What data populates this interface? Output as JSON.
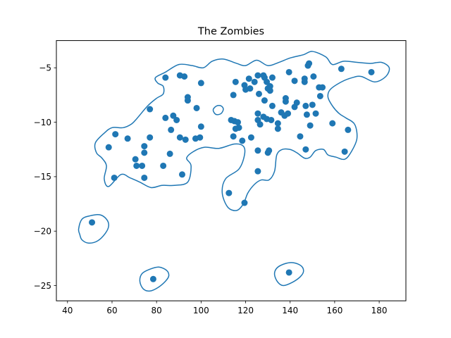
{
  "chart_data": {
    "type": "scatter",
    "title": "The Zombies",
    "xlabel": "",
    "ylabel": "",
    "xlim": [
      35,
      192
    ],
    "ylim": [
      -26.4,
      -2.5
    ],
    "xticks": [
      40,
      60,
      80,
      100,
      120,
      140,
      160,
      180
    ],
    "yticks": [
      -5,
      -10,
      -15,
      -20,
      -25
    ],
    "grid": false,
    "point_color": "#1f77b4",
    "contour_color": "#1f77b4",
    "series": [
      {
        "points": [
          [
            51,
            -19.2
          ],
          [
            78.5,
            -24.4
          ],
          [
            139.5,
            -23.8
          ],
          [
            112.5,
            -16.5
          ],
          [
            119.5,
            -17.4
          ],
          [
            61,
            -15.1
          ],
          [
            74.5,
            -15.1
          ],
          [
            91.5,
            -14.8
          ],
          [
            83,
            -14.0
          ],
          [
            71,
            -14.0
          ],
          [
            73.5,
            -14.0
          ],
          [
            70.5,
            -13.4
          ],
          [
            74.5,
            -12.8
          ],
          [
            86,
            -12.9
          ],
          [
            74.5,
            -12.2
          ],
          [
            58.5,
            -12.3
          ],
          [
            67,
            -11.5
          ],
          [
            77,
            -11.4
          ],
          [
            61.5,
            -11.1
          ],
          [
            90.5,
            -11.4
          ],
          [
            93,
            -11.6
          ],
          [
            97.5,
            -11.5
          ],
          [
            99.5,
            -11.4
          ],
          [
            100,
            -10.4
          ],
          [
            86.5,
            -10.7
          ],
          [
            84,
            -9.6
          ],
          [
            87.5,
            -9.4
          ],
          [
            89,
            -9.8
          ],
          [
            77,
            -8.8
          ],
          [
            98,
            -8.7
          ],
          [
            94,
            -8.0
          ],
          [
            94,
            -7.7
          ],
          [
            100,
            -6.4
          ],
          [
            90.5,
            -5.7
          ],
          [
            92.5,
            -5.8
          ],
          [
            84,
            -5.9
          ],
          [
            114.5,
            -7.5
          ],
          [
            115.5,
            -6.3
          ],
          [
            119.5,
            -6.6
          ],
          [
            120,
            -7.0
          ],
          [
            121.5,
            -6.0
          ],
          [
            122,
            -6.9
          ],
          [
            124,
            -6.3
          ],
          [
            125.5,
            -5.7
          ],
          [
            126,
            -7.4
          ],
          [
            128,
            -5.7
          ],
          [
            128.5,
            -5.9
          ],
          [
            129.5,
            -6.3
          ],
          [
            130,
            -6.9
          ],
          [
            131,
            -6.7
          ],
          [
            131,
            -7.1
          ],
          [
            132,
            -5.9
          ],
          [
            128.5,
            -8.0
          ],
          [
            132,
            -8.5
          ],
          [
            125.5,
            -9.2
          ],
          [
            125.5,
            -9.8
          ],
          [
            126.5,
            -10.2
          ],
          [
            128,
            -9.5
          ],
          [
            129.5,
            -9.7
          ],
          [
            131.5,
            -9.8
          ],
          [
            113.5,
            -9.8
          ],
          [
            115,
            -9.9
          ],
          [
            116.5,
            -10.0
          ],
          [
            117,
            -10.5
          ],
          [
            115.5,
            -10.6
          ],
          [
            114.5,
            -11.3
          ],
          [
            118.5,
            -11.7
          ],
          [
            122.5,
            -11.4
          ],
          [
            125.5,
            -12.6
          ],
          [
            130,
            -12.8
          ],
          [
            130.5,
            -12.6
          ],
          [
            125.5,
            -14.5
          ],
          [
            134.5,
            -10.1
          ],
          [
            134.5,
            -10.6
          ],
          [
            136,
            -9.1
          ],
          [
            137.5,
            -9.4
          ],
          [
            138,
            -7.8
          ],
          [
            138,
            -8.1
          ],
          [
            139,
            -9.2
          ],
          [
            139.5,
            -5.4
          ],
          [
            142,
            -6.2
          ],
          [
            142,
            -8.6
          ],
          [
            143,
            -8.2
          ],
          [
            144.5,
            -11.3
          ],
          [
            146.5,
            -6.0
          ],
          [
            146.5,
            -6.3
          ],
          [
            147,
            -8.5
          ],
          [
            147.5,
            -9.3
          ],
          [
            147,
            -12.5
          ],
          [
            148,
            -4.8
          ],
          [
            148.5,
            -4.6
          ],
          [
            149,
            -10.3
          ],
          [
            150,
            -8.4
          ],
          [
            150.5,
            -5.8
          ],
          [
            151.5,
            -9.2
          ],
          [
            153,
            -6.8
          ],
          [
            153.5,
            -7.6
          ],
          [
            154.5,
            -6.8
          ],
          [
            159,
            -10.1
          ],
          [
            163,
            -5.1
          ],
          [
            164.5,
            -12.7
          ],
          [
            166,
            -10.7
          ],
          [
            176.5,
            -5.4
          ]
        ]
      }
    ],
    "contours": [
      [
        [
          45,
          -19.8
        ],
        [
          46.5,
          -18.9
        ],
        [
          50,
          -18.6
        ],
        [
          54.5,
          -18.5
        ],
        [
          57.5,
          -18.9
        ],
        [
          58.5,
          -19.5
        ],
        [
          57,
          -20.2
        ],
        [
          53.5,
          -20.9
        ],
        [
          49.5,
          -21.1
        ],
        [
          46.5,
          -20.8
        ],
        [
          45.5,
          -20.3
        ]
      ],
      [
        [
          72.5,
          -24.6
        ],
        [
          73.5,
          -23.9
        ],
        [
          77,
          -23.5
        ],
        [
          81,
          -23.3
        ],
        [
          84.5,
          -23.6
        ],
        [
          85.5,
          -24.1
        ],
        [
          84,
          -24.6
        ],
        [
          80.5,
          -25.2
        ],
        [
          77,
          -25.5
        ],
        [
          74,
          -25.3
        ]
      ],
      [
        [
          133,
          -24.0
        ],
        [
          134,
          -23.4
        ],
        [
          137.5,
          -23.0
        ],
        [
          141.5,
          -22.9
        ],
        [
          145,
          -23.2
        ],
        [
          146,
          -23.7
        ],
        [
          144.5,
          -24.2
        ],
        [
          141,
          -24.7
        ],
        [
          137,
          -25.0
        ],
        [
          134.5,
          -24.7
        ]
      ],
      [
        [
          105.5,
          -8.8
        ],
        [
          107,
          -8.5
        ],
        [
          109,
          -8.5
        ],
        [
          110,
          -8.8
        ],
        [
          109,
          -9.2
        ],
        [
          107,
          -9.3
        ],
        [
          105.8,
          -9.1
        ]
      ],
      [
        [
          84,
          -5.4
        ],
        [
          90,
          -4.7
        ],
        [
          96,
          -4.8
        ],
        [
          101,
          -5.0
        ],
        [
          105,
          -4.4
        ],
        [
          110,
          -4.2
        ],
        [
          116,
          -4.6
        ],
        [
          120,
          -4.8
        ],
        [
          125,
          -4.3
        ],
        [
          130,
          -4.8
        ],
        [
          135,
          -4.5
        ],
        [
          140,
          -4.1
        ],
        [
          146,
          -3.8
        ],
        [
          150,
          -3.5
        ],
        [
          156,
          -4.0
        ],
        [
          159,
          -4.7
        ],
        [
          164,
          -4.4
        ],
        [
          170,
          -4.5
        ],
        [
          176,
          -4.6
        ],
        [
          181,
          -4.5
        ],
        [
          184.5,
          -5.0
        ],
        [
          183,
          -5.8
        ],
        [
          178,
          -6.3
        ],
        [
          172,
          -5.8
        ],
        [
          168,
          -5.9
        ],
        [
          163,
          -6.3
        ],
        [
          158,
          -7.0
        ],
        [
          157,
          -7.7
        ],
        [
          159,
          -8.5
        ],
        [
          162,
          -9.2
        ],
        [
          165,
          -9.6
        ],
        [
          169,
          -10.2
        ],
        [
          170,
          -11.5
        ],
        [
          167.5,
          -12.7
        ],
        [
          164.5,
          -13.4
        ],
        [
          160.5,
          -13.2
        ],
        [
          157,
          -13.0
        ],
        [
          155,
          -12.5
        ],
        [
          151.5,
          -12.6
        ],
        [
          149,
          -13.2
        ],
        [
          146.5,
          -13.3
        ],
        [
          143,
          -12.8
        ],
        [
          140,
          -12.5
        ],
        [
          136.5,
          -12.5
        ],
        [
          134,
          -13.0
        ],
        [
          133,
          -14.5
        ],
        [
          130.5,
          -15.3
        ],
        [
          127,
          -15.3
        ],
        [
          124,
          -15.7
        ],
        [
          121,
          -16.5
        ],
        [
          119,
          -17.5
        ],
        [
          116,
          -18.1
        ],
        [
          112,
          -17.8
        ],
        [
          109.5,
          -16.5
        ],
        [
          111,
          -15.2
        ],
        [
          117,
          -14.3
        ],
        [
          119.5,
          -13.0
        ],
        [
          119,
          -12.2
        ],
        [
          115,
          -12.0
        ],
        [
          108,
          -12.4
        ],
        [
          101.5,
          -12.3
        ],
        [
          96.5,
          -12.7
        ],
        [
          93.5,
          -13.3
        ],
        [
          95.5,
          -14.0
        ],
        [
          94,
          -15.5
        ],
        [
          88,
          -15.8
        ],
        [
          82.5,
          -15.8
        ],
        [
          77.5,
          -16.0
        ],
        [
          72.5,
          -15.5
        ],
        [
          68,
          -15.1
        ],
        [
          64,
          -14.8
        ],
        [
          58.5,
          -15.9
        ],
        [
          56.5,
          -15.2
        ],
        [
          57.5,
          -14.0
        ],
        [
          55.5,
          -13.3
        ],
        [
          53,
          -12.8
        ],
        [
          52.5,
          -11.9
        ],
        [
          56.5,
          -11.0
        ],
        [
          60,
          -10.5
        ],
        [
          65,
          -10.5
        ],
        [
          68.5,
          -10.2
        ],
        [
          71,
          -9.7
        ],
        [
          76,
          -8.5
        ],
        [
          80,
          -7.8
        ],
        [
          83,
          -7.4
        ],
        [
          83,
          -6.7
        ],
        [
          80.5,
          -6.4
        ],
        [
          79.5,
          -5.9
        ]
      ]
    ]
  }
}
